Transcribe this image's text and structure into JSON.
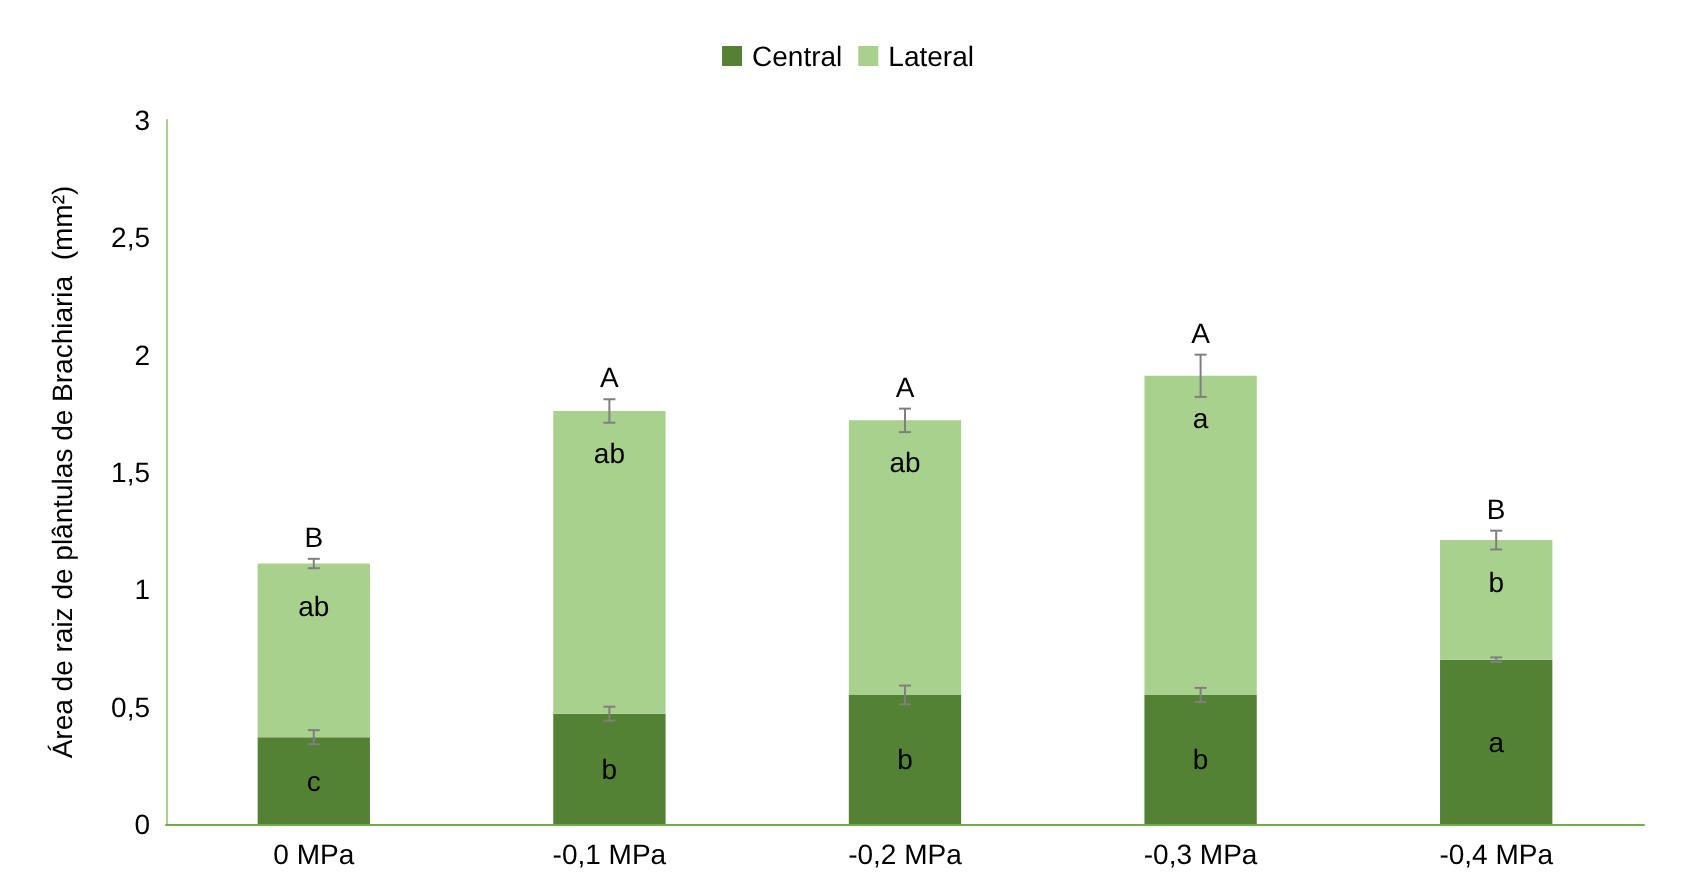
{
  "chart_data": {
    "type": "bar",
    "stacked": true,
    "ylabel": "Área de raiz de plântulas de Brachiaria  (mm²)",
    "categories": [
      "0 MPa",
      "-0,1 MPa",
      "-0,2 MPa",
      "-0,3 MPa",
      "-0,4 MPa"
    ],
    "series": [
      {
        "name": "Central",
        "color": "#548235",
        "values": [
          0.37,
          0.47,
          0.55,
          0.55,
          0.7
        ],
        "value_labels": [
          "c",
          "b",
          "b",
          "b",
          "a"
        ],
        "errors": [
          0.03,
          0.03,
          0.04,
          0.03,
          0.01
        ]
      },
      {
        "name": "Lateral",
        "color": "#a9d18e",
        "values": [
          0.74,
          1.29,
          1.17,
          1.36,
          0.51
        ],
        "value_labels": [
          "ab",
          "ab",
          "ab",
          "a",
          "b"
        ],
        "errors": [
          0.02,
          0.05,
          0.05,
          0.09,
          0.04
        ]
      }
    ],
    "ylim": [
      0,
      3
    ],
    "yticks": [
      0,
      {
        "value": 0.5,
        "label": "0,5"
      },
      1,
      {
        "value": 1.5,
        "label": "1,5"
      },
      2,
      {
        "value": 2.5,
        "label": "2,5"
      },
      3
    ],
    "grid": false,
    "legend": "top",
    "totals": [
      "B",
      "A",
      "A",
      "A",
      "B"
    ]
  }
}
